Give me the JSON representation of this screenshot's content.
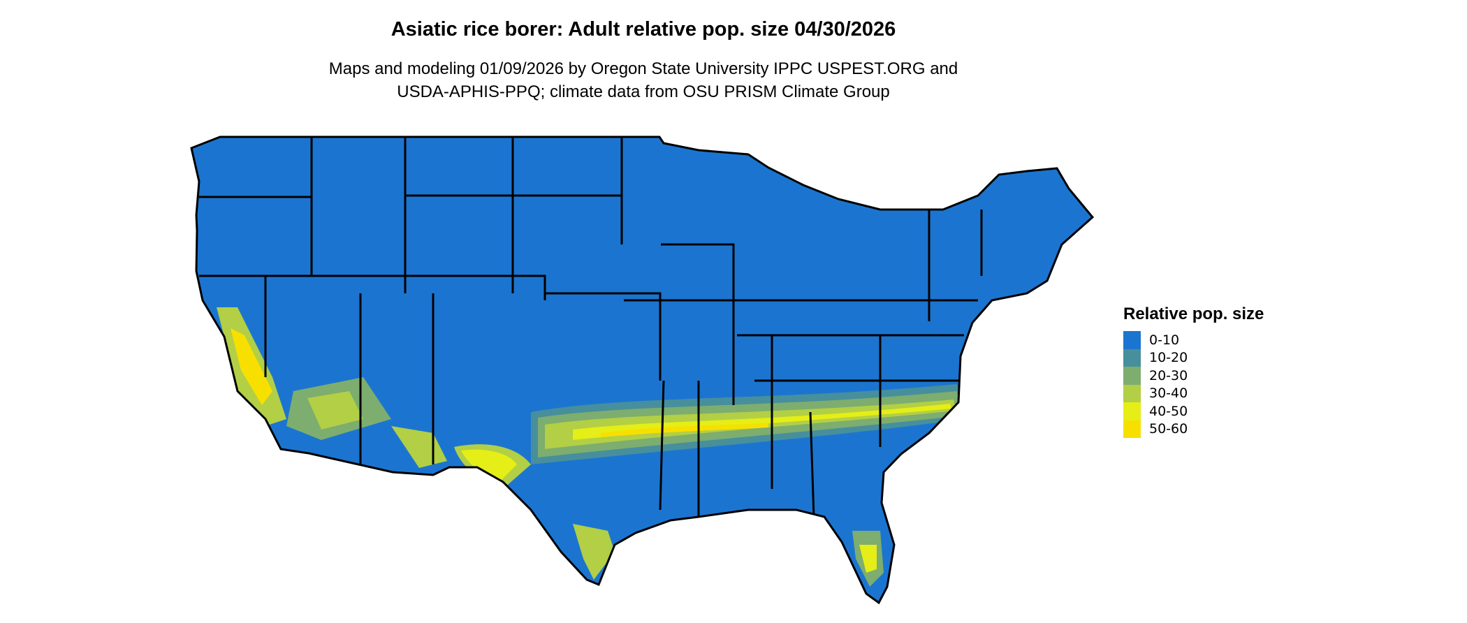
{
  "title": "Asiatic rice borer: Adult relative pop. size 04/30/2026",
  "subtitle_line1": "Maps and modeling 01/09/2026 by Oregon State University IPPC USPEST.ORG and",
  "subtitle_line2": "USDA-APHIS-PPQ; climate data from OSU PRISM Climate Group",
  "legend": {
    "title": "Relative pop. size",
    "items": [
      {
        "label": "0-10",
        "color": "#1b75d0"
      },
      {
        "label": "10-20",
        "color": "#478f9c"
      },
      {
        "label": "20-30",
        "color": "#7dad6f"
      },
      {
        "label": "30-40",
        "color": "#b2cf45"
      },
      {
        "label": "40-50",
        "color": "#e5ee16"
      },
      {
        "label": "50-60",
        "color": "#f7e000"
      }
    ]
  },
  "map": {
    "region": "contiguous United States",
    "state_border_color": "#000000"
  }
}
